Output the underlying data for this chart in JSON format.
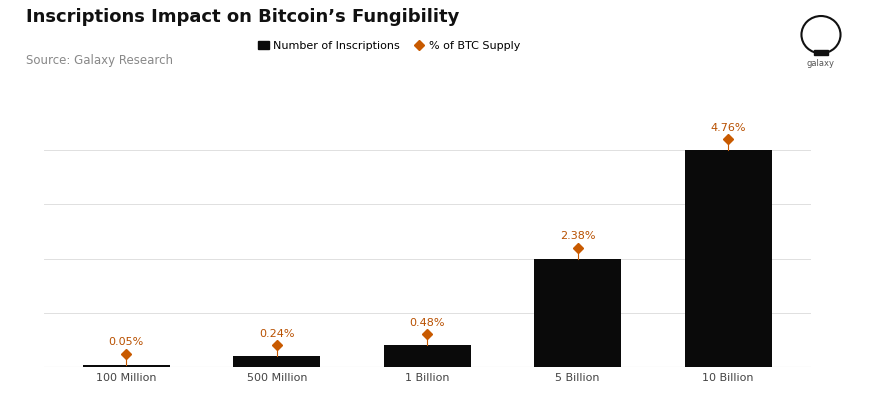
{
  "title": "Inscriptions Impact on Bitcoin’s Fungibility",
  "subtitle": "Source: Galaxy Research",
  "categories": [
    "100 Million",
    "500 Million",
    "1 Billion",
    "5 Billion",
    "10 Billion"
  ],
  "pct_btc_supply": [
    0.05,
    0.24,
    0.48,
    2.38,
    4.76
  ],
  "pct_labels": [
    "0.05%",
    "0.24%",
    "0.48%",
    "2.38%",
    "4.76%"
  ],
  "bar_color": "#0a0a0a",
  "dot_color": "#c85a00",
  "dot_label_color": "#b85000",
  "background_color": "#ffffff",
  "grid_color": "#e0e0e0",
  "title_fontsize": 13,
  "subtitle_fontsize": 8.5,
  "legend_fontsize": 8,
  "tick_fontsize": 8,
  "annotation_fontsize": 8,
  "bar_width": 0.58
}
